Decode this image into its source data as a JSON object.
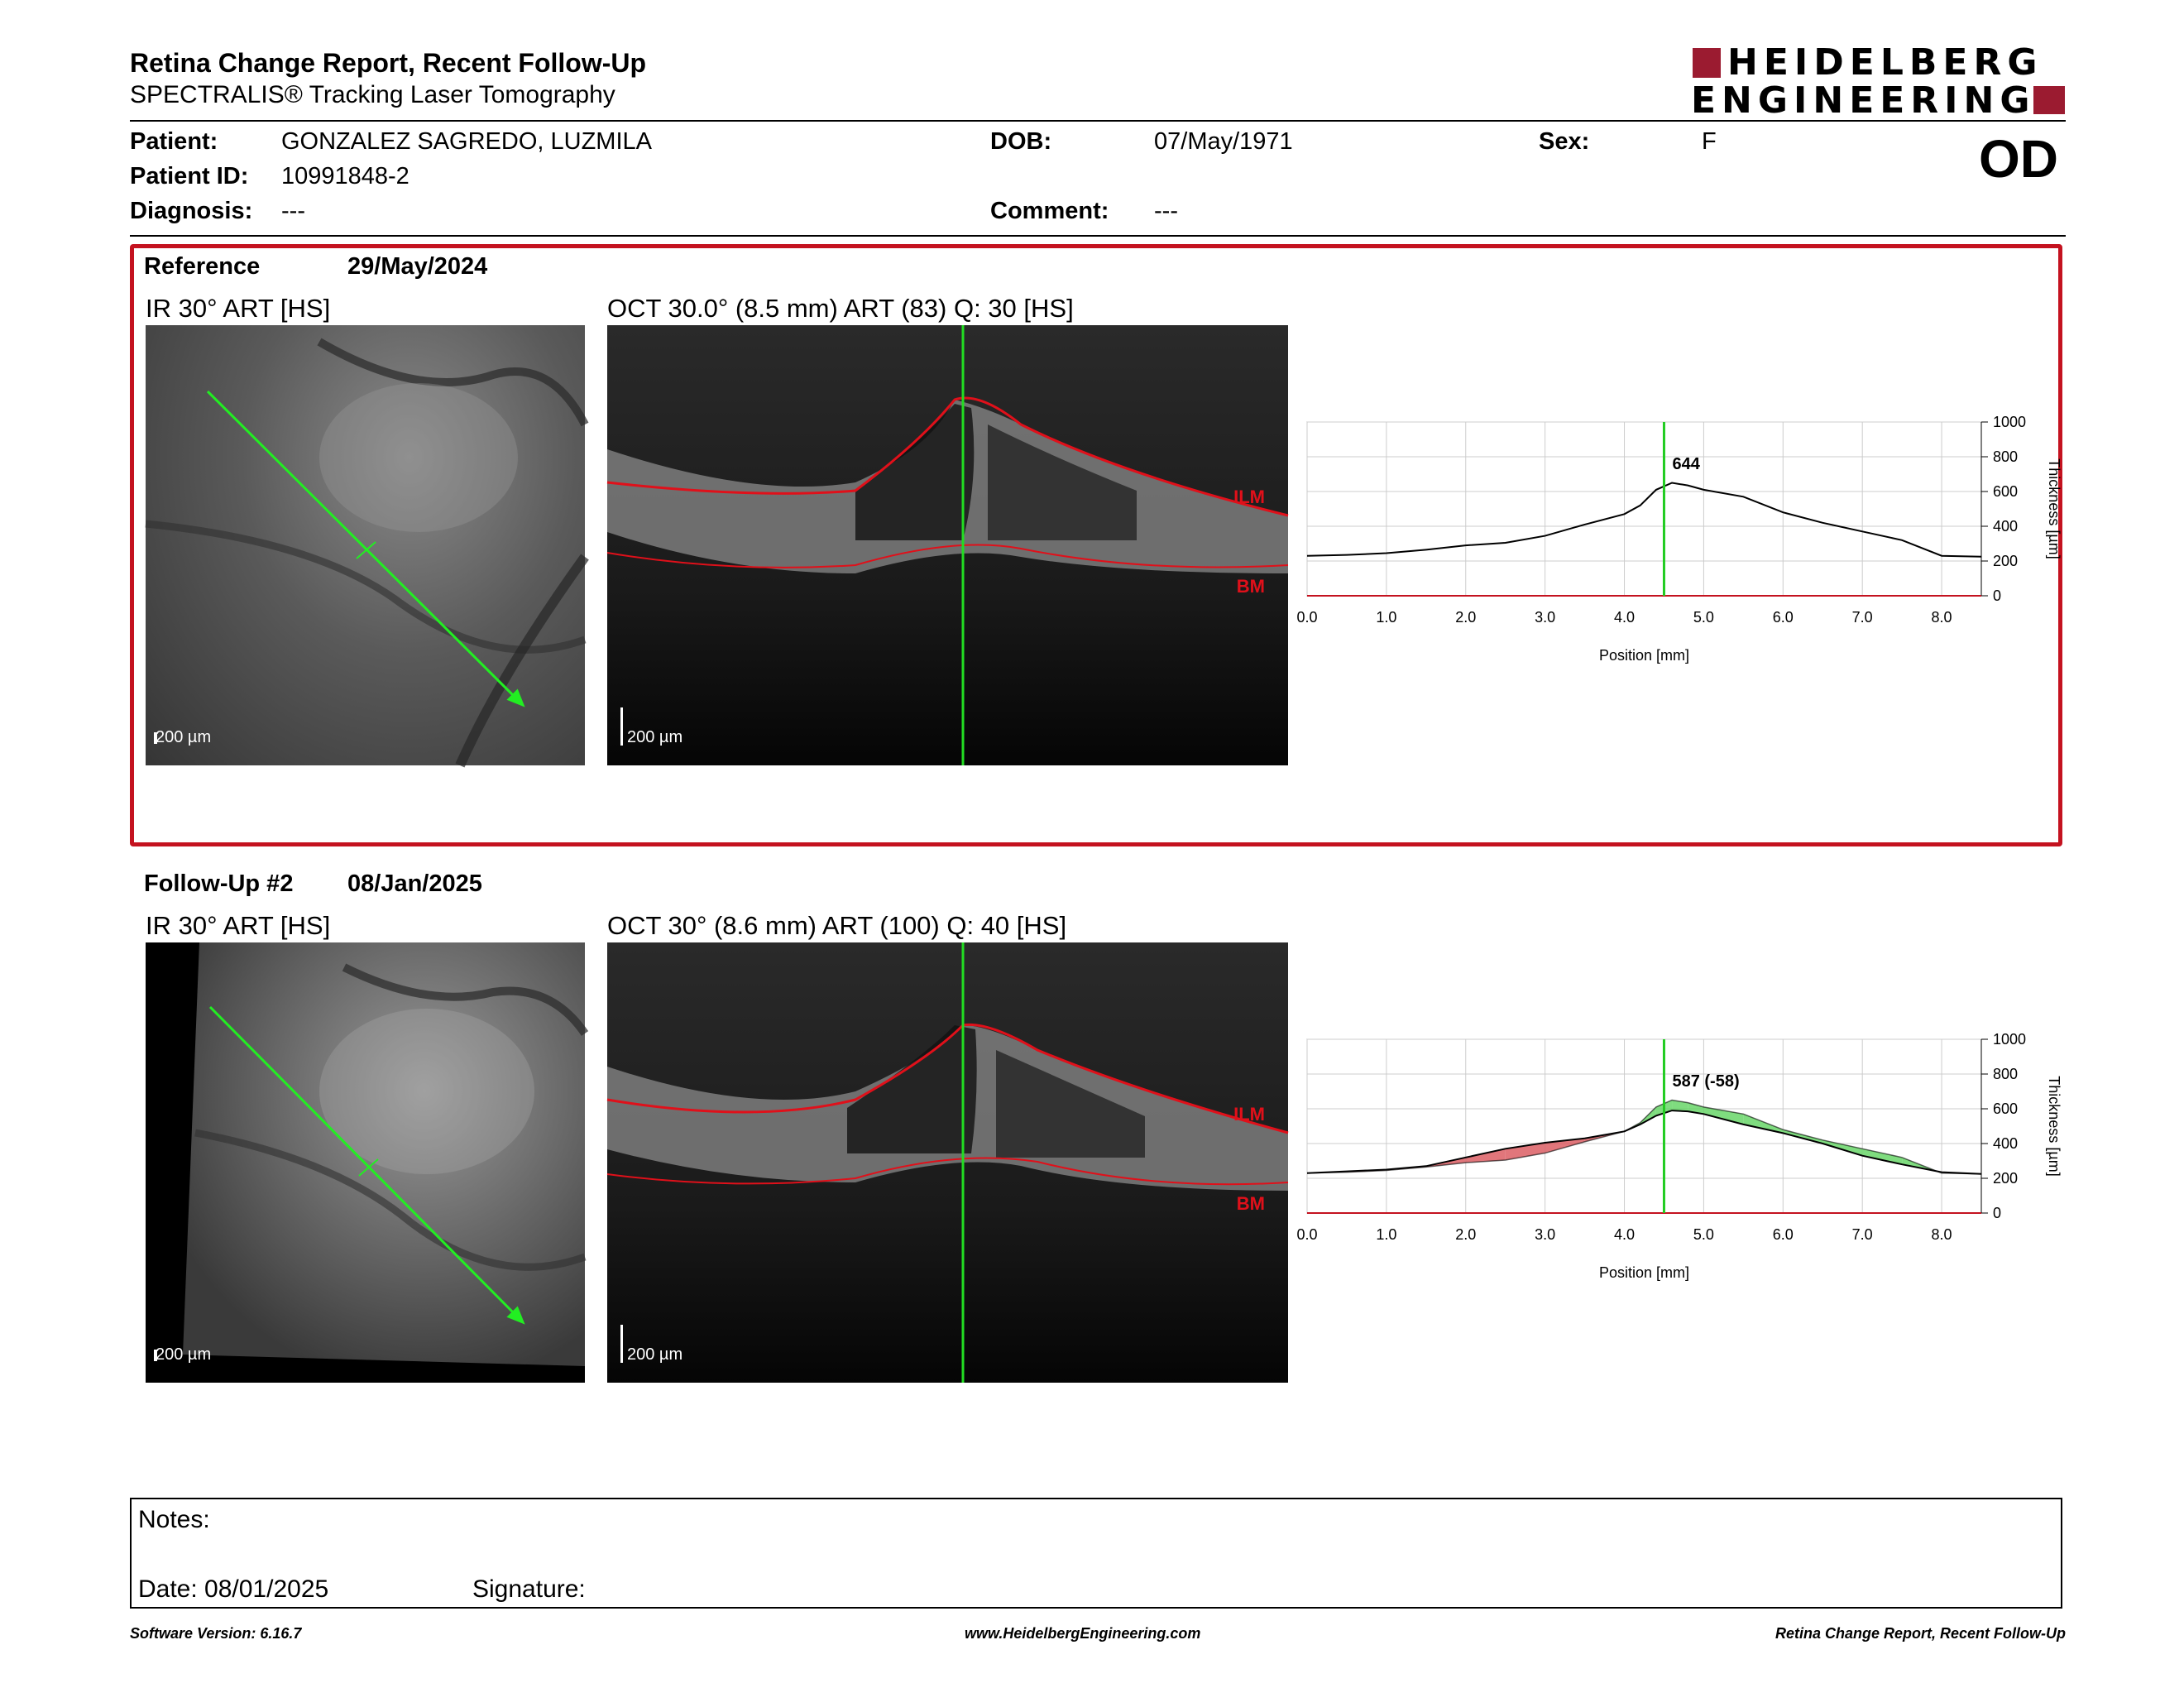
{
  "header": {
    "title": "Retina Change Report, Recent Follow-Up",
    "subtitle": "SPECTRALIS® Tracking Laser Tomography",
    "logo_line1": "HEIDELBERG",
    "logo_line2": "ENGINEERING",
    "eye": "OD"
  },
  "patient": {
    "patient_label": "Patient:",
    "patient_value": "GONZALEZ SAGREDO, LUZMILA",
    "id_label": "Patient ID:",
    "id_value": "10991848-2",
    "diag_label": "Diagnosis:",
    "diag_value": "---",
    "dob_label": "DOB:",
    "dob_value": "07/May/1971",
    "comment_label": "Comment:",
    "comment_value": "---",
    "sex_label": "Sex:",
    "sex_value": "F"
  },
  "reference": {
    "label": "Reference",
    "date": "29/May/2024",
    "ir_caption": "IR 30° ART [HS]",
    "oct_caption": "OCT 30.0° (8.5 mm) ART (83) Q: 30 [HS]",
    "ir_scale": "200 µm",
    "oct_scale": "200 µm",
    "ilm": "ILM",
    "bm": "BM",
    "value_label": "644"
  },
  "followup": {
    "label": "Follow-Up #2",
    "date": "08/Jan/2025",
    "ir_caption": "IR 30° ART [HS]",
    "oct_caption": "OCT 30° (8.6 mm) ART (100) Q: 40 [HS]",
    "ir_scale": "200 µm",
    "oct_scale": "200 µm",
    "ilm": "ILM",
    "bm": "BM",
    "value_label": "587 (-58)"
  },
  "chart_data": [
    {
      "type": "line",
      "xlabel": "Position [mm]",
      "ylabel": "Thickness [µm]",
      "xlim": [
        0,
        8.5
      ],
      "ylim": [
        0,
        1000
      ],
      "xticks": [
        "0.0",
        "1.0",
        "2.0",
        "3.0",
        "4.0",
        "5.0",
        "6.0",
        "7.0",
        "8.0"
      ],
      "yticks": [
        "0",
        "200",
        "400",
        "600",
        "800",
        "1000"
      ],
      "cursor_x": 4.5,
      "annotation": "644",
      "series": [
        {
          "x": [
            0,
            0.5,
            1,
            1.5,
            2,
            2.5,
            3,
            3.5,
            4,
            4.2,
            4.4,
            4.6,
            4.8,
            5,
            5.5,
            6,
            6.5,
            7,
            7.5,
            8,
            8.5
          ],
          "y": [
            230,
            235,
            245,
            265,
            290,
            305,
            345,
            410,
            470,
            520,
            610,
            650,
            635,
            610,
            570,
            480,
            420,
            370,
            320,
            230,
            225
          ]
        }
      ],
      "color_line": "#000000",
      "color_cursor": "#22cc22"
    },
    {
      "type": "area",
      "xlabel": "Position [mm]",
      "ylabel": "Thickness [µm]",
      "xlim": [
        0,
        8.5
      ],
      "ylim": [
        0,
        1000
      ],
      "xticks": [
        "0.0",
        "1.0",
        "2.0",
        "3.0",
        "4.0",
        "5.0",
        "6.0",
        "7.0",
        "8.0"
      ],
      "yticks": [
        "0",
        "200",
        "400",
        "600",
        "800",
        "1000"
      ],
      "cursor_x": 4.5,
      "annotation": "587 (-58)",
      "series": [
        {
          "name": "reference",
          "x": [
            0,
            0.5,
            1,
            1.5,
            2,
            2.5,
            3,
            3.5,
            4,
            4.2,
            4.4,
            4.6,
            4.8,
            5,
            5.5,
            6,
            6.5,
            7,
            7.5,
            8,
            8.5
          ],
          "y": [
            230,
            235,
            245,
            265,
            290,
            305,
            345,
            410,
            470,
            520,
            610,
            650,
            635,
            610,
            570,
            480,
            420,
            370,
            320,
            230,
            225
          ]
        },
        {
          "name": "follow-up",
          "x": [
            0,
            0.5,
            1,
            1.5,
            2,
            2.5,
            3,
            3.5,
            4,
            4.2,
            4.4,
            4.6,
            4.8,
            5,
            5.5,
            6,
            6.5,
            7,
            7.5,
            8,
            8.5
          ],
          "y": [
            230,
            240,
            250,
            270,
            320,
            370,
            405,
            430,
            470,
            510,
            560,
            590,
            585,
            570,
            510,
            460,
            400,
            330,
            280,
            235,
            225
          ]
        }
      ],
      "color_increase": "#5fd35f",
      "color_decrease": "#d9545a",
      "color_cursor": "#22cc22"
    }
  ],
  "notes": {
    "label": "Notes:",
    "date_label": "Date: 08/01/2025",
    "signature_label": "Signature:"
  },
  "footer": {
    "left": "Software Version: 6.16.7",
    "center": "www.HeidelbergEngineering.com",
    "right": "Retina Change Report, Recent Follow-Up"
  }
}
